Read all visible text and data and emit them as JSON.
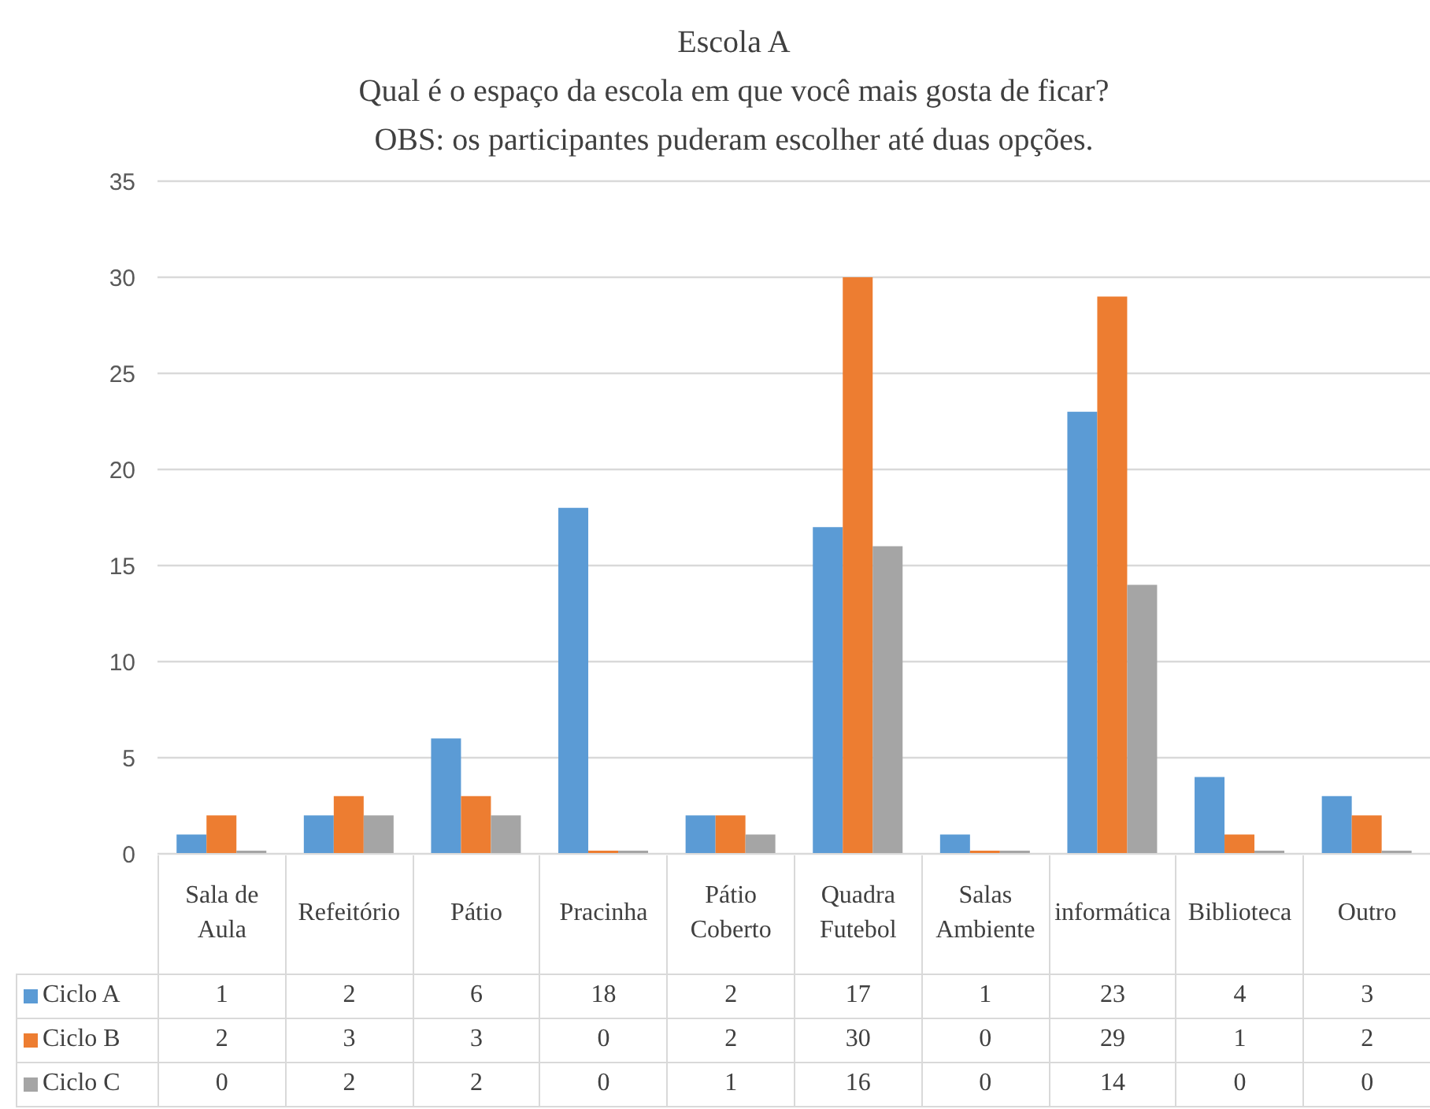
{
  "chart_data": {
    "type": "bar",
    "title": "Escola A",
    "subtitle": "Qual é o espaço da escola em que você mais gosta de ficar?",
    "annotations": [
      "OBS: os participantes puderam escolher até duas opções."
    ],
    "categories": [
      "Sala de Aula",
      "Refeitório",
      "Pátio",
      "Pracinha",
      "Pátio Coberto",
      "Quadra Futebol",
      "Salas Ambiente",
      "informática",
      "Biblioteca",
      "Outro"
    ],
    "series": [
      {
        "name": "Ciclo A",
        "color": "#5b9bd5",
        "values": [
          1,
          2,
          6,
          18,
          2,
          17,
          1,
          23,
          4,
          3
        ]
      },
      {
        "name": "Ciclo B",
        "color": "#ed7d31",
        "values": [
          2,
          3,
          3,
          0,
          2,
          30,
          0,
          29,
          1,
          2
        ]
      },
      {
        "name": "Ciclo C",
        "color": "#a5a5a5",
        "values": [
          0,
          2,
          2,
          0,
          1,
          16,
          0,
          14,
          0,
          0
        ]
      }
    ],
    "ylim": [
      0,
      35
    ],
    "yticks": [
      0,
      5,
      10,
      15,
      20,
      25,
      30,
      35
    ],
    "grid": "y",
    "legend": "bottom",
    "data_labels": true
  }
}
